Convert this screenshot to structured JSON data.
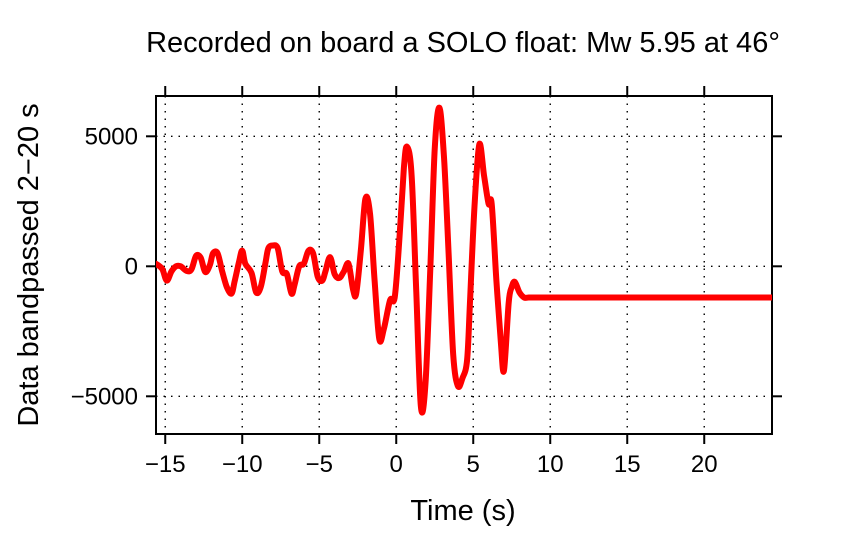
{
  "chart_data": {
    "type": "line",
    "title": "Recorded on board a SOLO float: Mw 5.95 at 46°",
    "xlabel": "Time (s)",
    "ylabel": "Data bandpassed 2−20 s",
    "xlim": [
      -15.6,
      24.4
    ],
    "ylim": [
      -6450,
      6550
    ],
    "x_ticks": [
      -15,
      -10,
      -5,
      0,
      5,
      10,
      15,
      20
    ],
    "x_tick_labels": [
      "−15",
      "−10",
      "−5",
      "0",
      "5",
      "10",
      "15",
      "20"
    ],
    "y_ticks": [
      5000,
      0,
      -5000
    ],
    "y_tick_labels": [
      "5000",
      "0",
      "−5000"
    ],
    "grid": true,
    "series": [
      {
        "color": "#ff0000",
        "x": [
          -15.6,
          -15.2,
          -14.9,
          -14.6,
          -14.3,
          -14.0,
          -13.6,
          -13.3,
          -13.0,
          -12.7,
          -12.4,
          -12.1,
          -11.9,
          -11.6,
          -11.3,
          -11.0,
          -10.7,
          -10.5,
          -10.2,
          -10.0,
          -9.8,
          -9.4,
          -9.1,
          -8.8,
          -8.5,
          -8.3,
          -8.0,
          -7.7,
          -7.4,
          -7.1,
          -6.8,
          -6.6,
          -6.3,
          -6.0,
          -5.7,
          -5.4,
          -5.1,
          -4.8,
          -4.6,
          -4.3,
          -4.0,
          -3.7,
          -3.4,
          -3.1,
          -2.8,
          -2.6,
          -2.3,
          -2.0,
          -1.7,
          -1.4,
          -1.1,
          -0.8,
          -0.4,
          -0.1,
          0.2,
          0.5,
          0.7,
          1.0,
          1.3,
          1.6,
          1.9,
          2.2,
          2.5,
          2.8,
          3.1,
          3.4,
          3.7,
          4.0,
          4.3,
          4.6,
          4.8,
          5.1,
          5.4,
          5.7,
          6.0,
          6.2,
          6.5,
          6.8,
          7.0,
          7.3,
          7.5,
          7.7,
          8.0,
          8.3,
          8.6,
          8.9,
          9.1,
          9.4,
          9.7,
          10.0,
          10.3,
          10.6,
          10.9,
          11.1,
          11.4,
          11.6,
          11.9,
          12.1,
          12.4,
          12.7,
          13.0,
          13.3,
          13.5,
          13.8,
          14.1,
          14.4,
          14.7,
          14.9,
          15.2,
          15.5,
          15.8,
          16.1,
          16.4,
          16.7,
          17.0,
          17.3,
          17.5,
          17.8,
          18.1,
          18.4,
          18.7,
          18.9,
          19.2,
          19.5,
          19.8,
          20.0,
          20.3,
          20.6,
          20.9,
          21.1,
          21.4,
          21.7,
          22.0,
          22.3,
          22.5,
          22.8,
          23.1,
          23.4,
          23.7,
          24.0,
          24.4
        ],
        "values": [
          100,
          -100,
          -550,
          -200,
          0,
          0,
          -180,
          -120,
          400,
          330,
          -220,
          50,
          500,
          500,
          -200,
          -800,
          -1050,
          -600,
          200,
          600,
          100,
          -250,
          -1000,
          -800,
          100,
          700,
          800,
          700,
          -200,
          -300,
          -1050,
          -700,
          0,
          100,
          600,
          500,
          -400,
          -550,
          -200,
          350,
          -300,
          -450,
          -200,
          100,
          -900,
          -1050,
          600,
          2600,
          2000,
          -600,
          -2800,
          -2400,
          -1300,
          -1200,
          1000,
          3800,
          4600,
          3500,
          -1000,
          -5400,
          -4500,
          -300,
          4500,
          6100,
          4200,
          500,
          -3400,
          -4600,
          -4300,
          -3600,
          -1200,
          2500,
          4700,
          3500,
          2400,
          2400,
          -500,
          -3000,
          -4000,
          -1400,
          -800,
          -600,
          -1000,
          -1200,
          -1200,
          -1200,
          -1200,
          -1200,
          -1200,
          -1200,
          -1200,
          -1200,
          -1200,
          -1200,
          -1200,
          -1200,
          -1200,
          -1200,
          -1200,
          -1200,
          -1200,
          -1200,
          -1200,
          -1200,
          -1200,
          -1200,
          -1200,
          -1200,
          -1200,
          -1200,
          -1200,
          -1200,
          -1200,
          -1200,
          -1200,
          -1200,
          -1200,
          -1200,
          -1200,
          -1200,
          -1200,
          -1200,
          -1200,
          -1200,
          -1200,
          -1200,
          -1200,
          -1200,
          -1200,
          -1200,
          -1200,
          -1200,
          -1200,
          -1200,
          -1200,
          -1200,
          -1200,
          -1200,
          -1200,
          -1200,
          -1200
        ]
      }
    ]
  }
}
